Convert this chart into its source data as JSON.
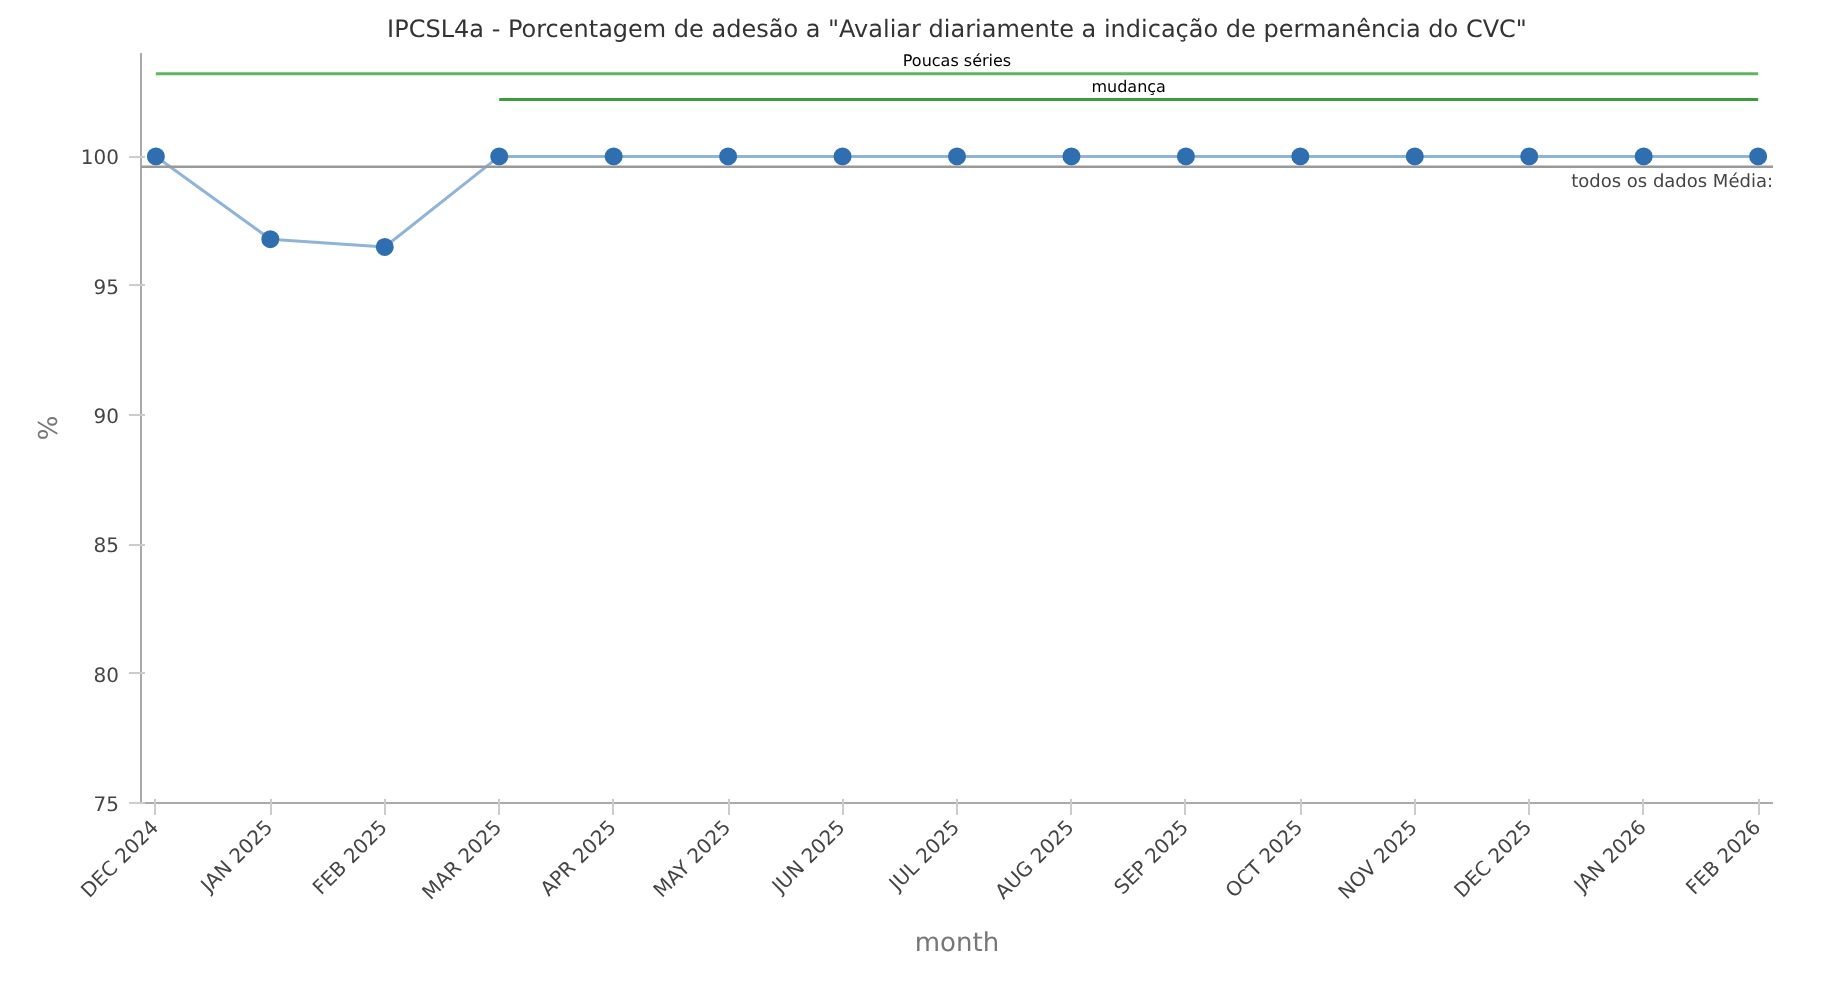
{
  "chart_data": {
    "type": "line",
    "title": "IPCSL4a - Porcentagem de adesão a \"Avaliar diariamente a indicação de permanência do CVC\"",
    "xlabel": "month",
    "ylabel": "%",
    "categories": [
      "DEC 2024",
      "JAN 2025",
      "FEB 2025",
      "MAR 2025",
      "APR 2025",
      "MAY 2025",
      "JUN 2025",
      "JUL 2025",
      "AUG 2025",
      "SEP 2025",
      "OCT 2025",
      "NOV 2025",
      "DEC 2025",
      "JAN 2026",
      "FEB 2026"
    ],
    "series": [
      {
        "color": "#2f6fb0",
        "values": [
          100,
          96.8,
          96.5,
          100,
          100,
          100,
          100,
          100,
          100,
          100,
          100,
          100,
          100,
          100,
          100
        ]
      },
      {
        "name": "Poucas séries",
        "color": "#5cb85c",
        "marker": "none",
        "values": [
          103.2,
          103.2,
          103.2,
          103.2,
          103.2,
          103.2,
          103.2,
          103.2,
          103.2,
          103.2,
          103.2,
          103.2,
          103.2,
          103.2,
          103.2
        ]
      },
      {
        "name": "mudança",
        "color": "#3a9d3a",
        "marker": "none",
        "values": [
          null,
          null,
          null,
          102.2,
          102.2,
          102.2,
          102.2,
          102.2,
          102.2,
          102.2,
          102.2,
          102.2,
          102.2,
          102.2,
          102.2
        ]
      }
    ],
    "ylim": [
      75,
      104
    ],
    "yticks": [
      75,
      80,
      85,
      90,
      95,
      100
    ],
    "ref_lines": [
      {
        "axis": "y",
        "value": 99.6,
        "label": "todos os dados Média:",
        "color": "#999999"
      }
    ],
    "marker": "circle",
    "grid": false
  }
}
